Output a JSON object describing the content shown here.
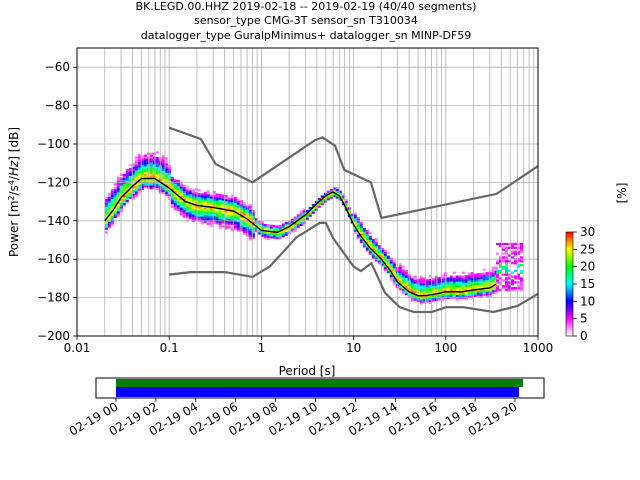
{
  "title_lines": [
    "BK.LEGD.00.HHZ   2019-02-18 -- 2019-02-19  (40/40 segments)",
    "sensor_type CMG-3T sensor_sn T310034",
    "datalogger_type GuralpMinimus+ datalogger_sn MINP-DF59"
  ],
  "chart_data": [
    {
      "type": "heatmap",
      "title": "BK.LEGD.00.HHZ   2019-02-18 -- 2019-02-19  (40/40 segments)",
      "xlabel": "Period [s]",
      "ylabel": "Power [m²/s⁴/Hz] [dB]",
      "xscale": "log",
      "xlim": [
        0.01,
        1000
      ],
      "ylim": [
        -200,
        -50
      ],
      "xticks": [
        0.01,
        0.1,
        1,
        10,
        100,
        1000
      ],
      "xtick_labels": [
        "0.01",
        "0.1",
        "1",
        "10",
        "100",
        "1000"
      ],
      "yticks": [
        -200,
        -180,
        -160,
        -140,
        -120,
        -100,
        -80,
        -60
      ],
      "ytick_labels": [
        "−200",
        "−180",
        "−160",
        "−140",
        "−120",
        "−100",
        "−80",
        "−60"
      ],
      "grid": true,
      "colorbar": {
        "label": "[%]",
        "range": [
          0,
          30
        ],
        "ticks": [
          0,
          5,
          10,
          15,
          20,
          25,
          30
        ],
        "tick_labels": [
          "0",
          "5",
          "10",
          "15",
          "20",
          "25",
          "30"
        ],
        "colormap": [
          "#ffffff",
          "#ff00ff",
          "#0000ff",
          "#00ffff",
          "#00ff00",
          "#ffff00",
          "#ff0000"
        ]
      },
      "mean_curve": {
        "color": "#000000",
        "x": [
          0.02,
          0.025,
          0.03,
          0.04,
          0.05,
          0.07,
          0.1,
          0.15,
          0.2,
          0.3,
          0.5,
          0.7,
          1,
          1.5,
          2,
          3,
          4,
          5,
          6,
          7,
          8,
          10,
          12,
          15,
          20,
          25,
          30,
          40,
          50,
          60,
          80,
          100,
          150,
          200,
          300,
          350
        ],
        "y": [
          -140,
          -134,
          -128,
          -122,
          -118,
          -118,
          -123,
          -130,
          -132,
          -133,
          -135,
          -139,
          -145,
          -146,
          -143,
          -137,
          -131,
          -127,
          -125,
          -127,
          -132,
          -142,
          -148,
          -154,
          -160,
          -166,
          -172,
          -177,
          -179,
          -179,
          -178,
          -177,
          -177,
          -176,
          -175,
          -173
        ]
      },
      "noise_models": {
        "color": "#666666",
        "high": {
          "x": [
            0.1,
            0.22,
            0.32,
            0.8,
            3.8,
            4.6,
            6.3,
            7.9,
            15.4,
            20,
            354.8,
            1000
          ],
          "y": [
            -91.5,
            -97.4,
            -110.5,
            -120,
            -98,
            -96.5,
            -101,
            -113.5,
            -120,
            -138.5,
            -126,
            -111.5
          ]
        },
        "low": {
          "x": [
            0.1,
            0.17,
            0.4,
            0.8,
            1.24,
            2.4,
            4.3,
            5,
            6,
            10,
            12,
            15.6,
            21.9,
            31.6,
            45,
            70,
            101,
            154,
            328,
            600,
            1000
          ],
          "y": [
            -168,
            -166.7,
            -166.7,
            -169.2,
            -163.7,
            -148.6,
            -141.1,
            -141.1,
            -149,
            -163.8,
            -166.2,
            -162.1,
            -177.5,
            -185,
            -187.5,
            -187.5,
            -185,
            -185,
            -187.5,
            -184.4,
            -178
          ]
        }
      }
    },
    {
      "type": "bar",
      "title": "",
      "xlabel": "",
      "xtick_labels": [
        "02-19 00",
        "02-19 02",
        "02-19 04",
        "02-19 06",
        "02-19 08",
        "02-19 10",
        "02-19 12",
        "02-19 14",
        "02-19 16",
        "02-19 18",
        "02-19 20"
      ],
      "series": [
        {
          "color": "#008000",
          "start_hour": 0.0,
          "end_hour": 20.4
        },
        {
          "color": "#0000ff",
          "start_hour": 0.0,
          "end_hour": 20.2
        }
      ]
    }
  ]
}
